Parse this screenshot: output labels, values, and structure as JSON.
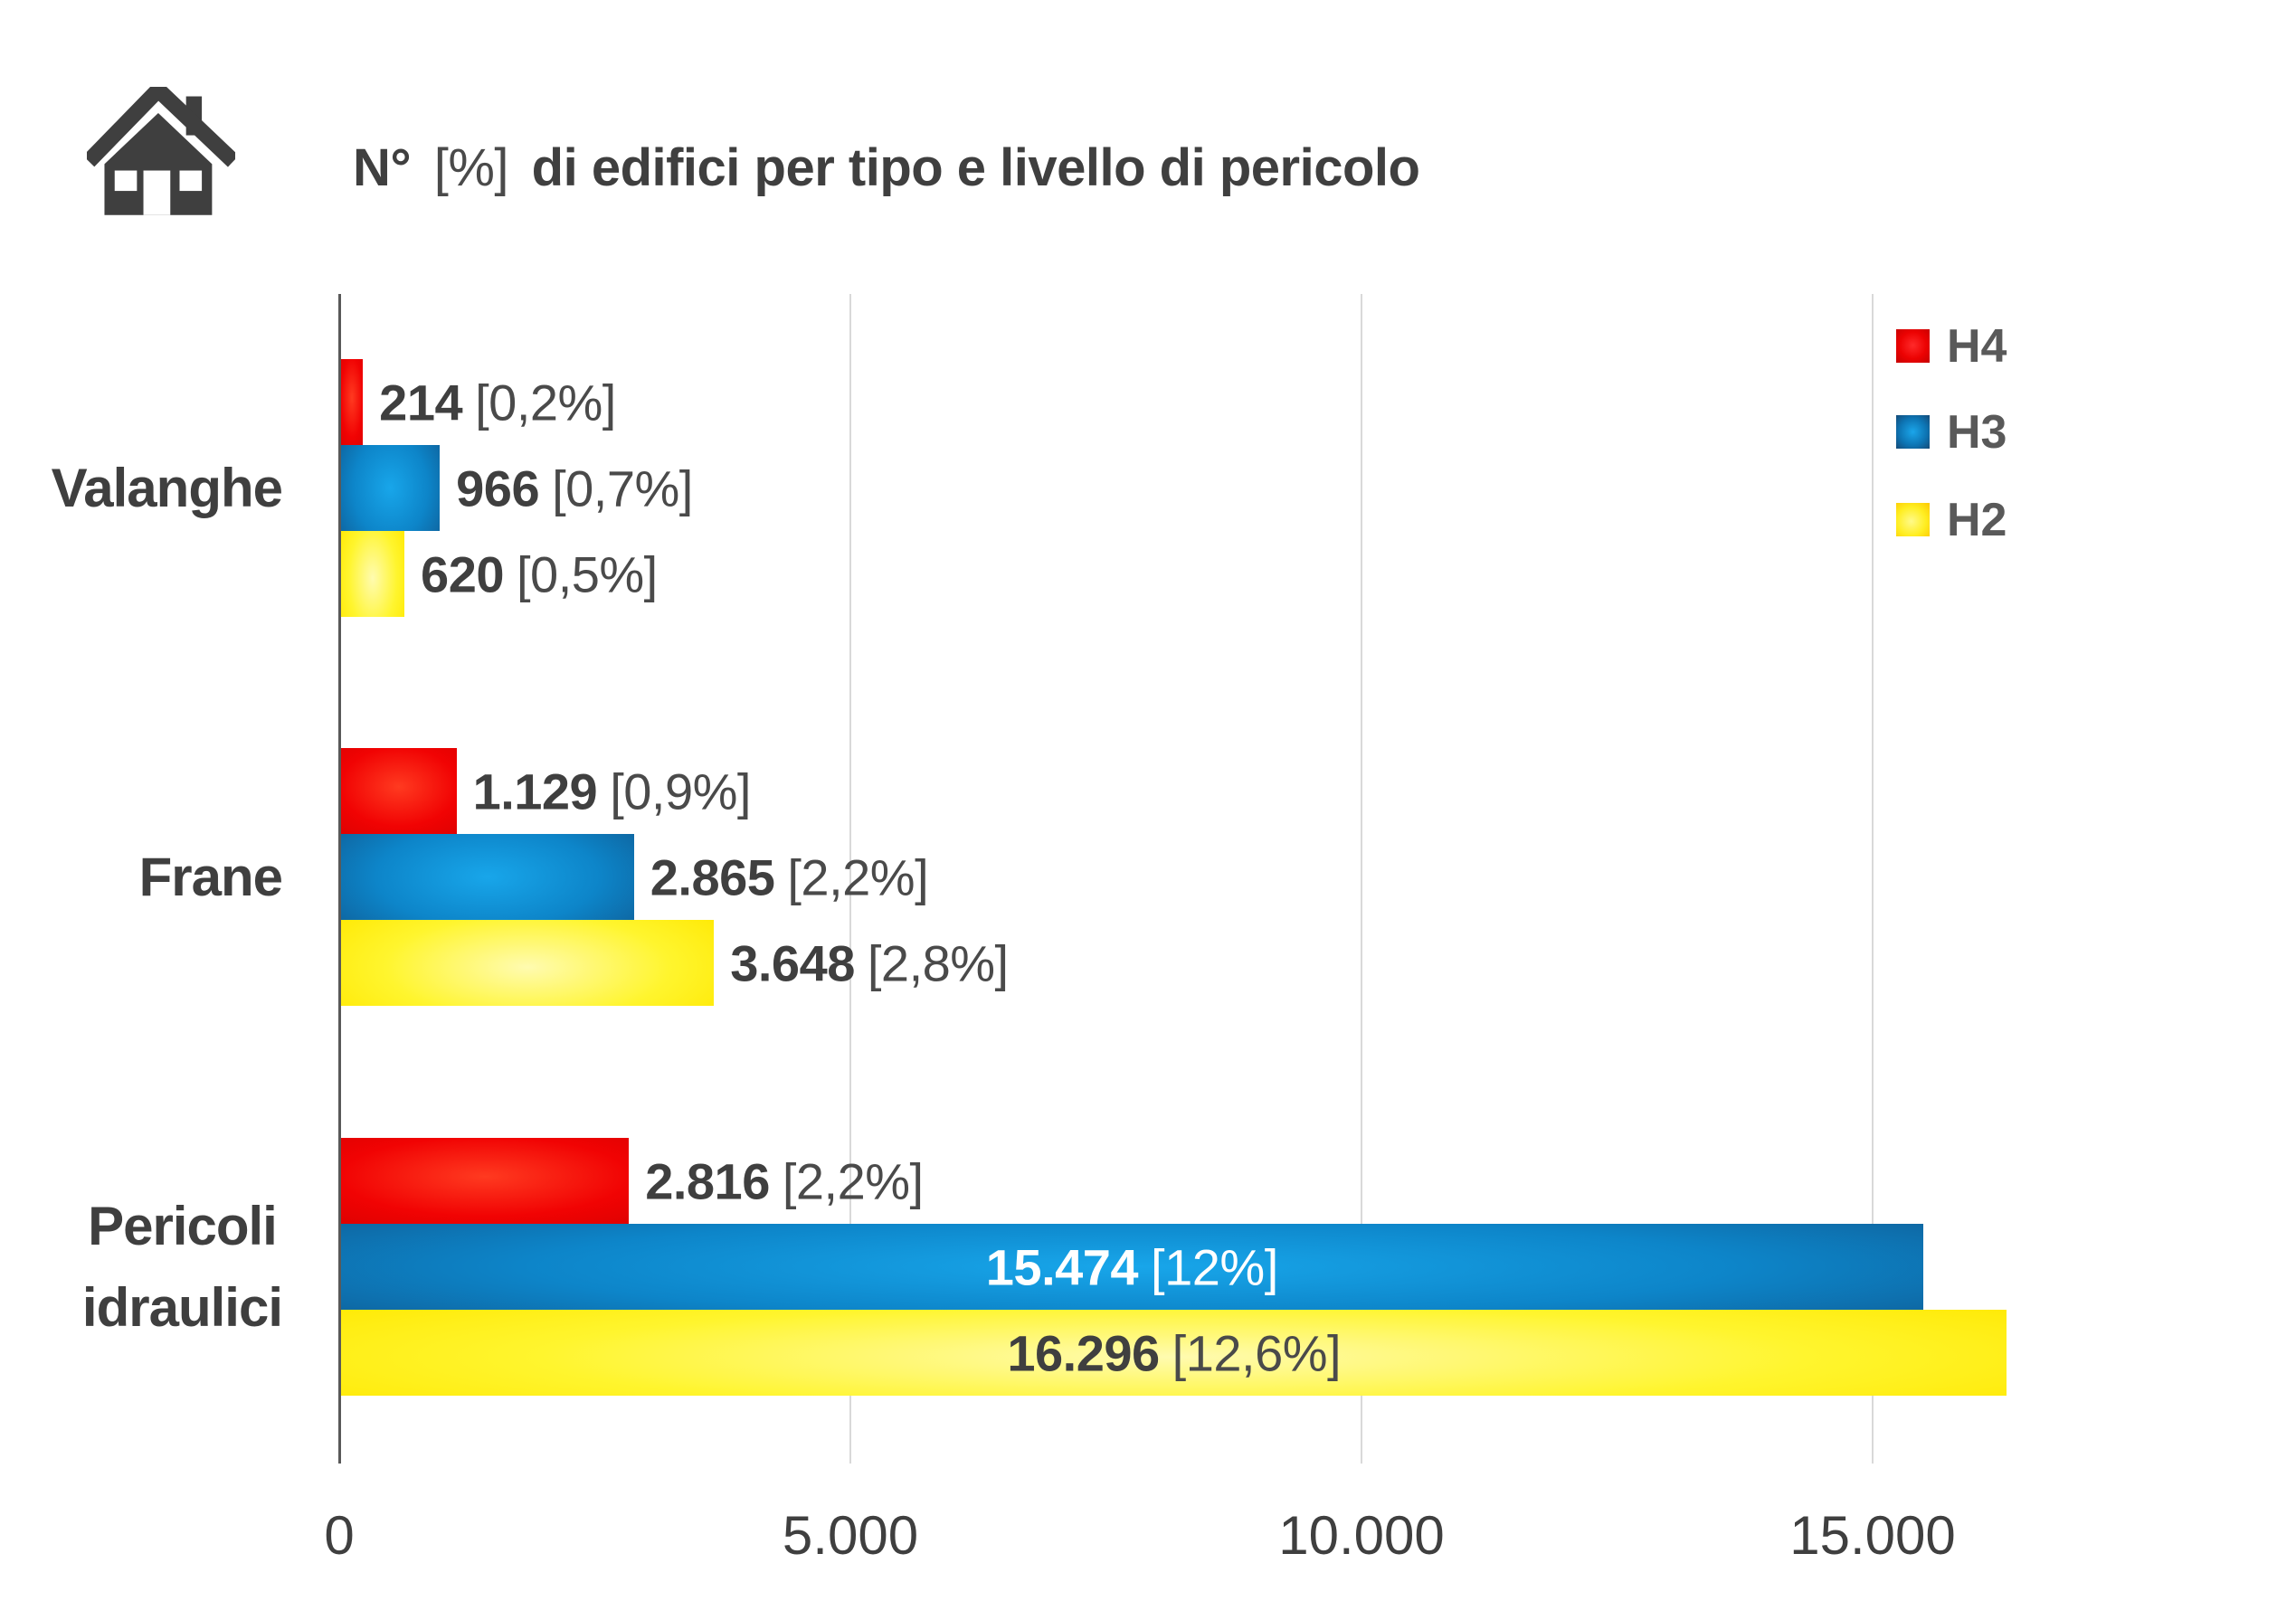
{
  "title": {
    "bold_prefix": "N°",
    "light_mid": "[%]",
    "bold_rest": "di edifici per tipo e livello di pericolo"
  },
  "legend": {
    "items": [
      {
        "key": "h4",
        "label": "H4"
      },
      {
        "key": "h3",
        "label": "H3"
      },
      {
        "key": "h2",
        "label": "H2"
      }
    ]
  },
  "x_axis": {
    "tick_labels": [
      "0",
      "5.000",
      "10.000",
      "15.000"
    ],
    "tick_values": [
      0,
      5000,
      10000,
      15000
    ]
  },
  "chart_data": {
    "type": "bar",
    "orientation": "horizontal",
    "title": "N° [%] di edifici per tipo e livello di pericolo",
    "categories": [
      "Valanghe",
      "Frane",
      "Pericoli idraulici"
    ],
    "category_lines": [
      [
        "Valanghe"
      ],
      [
        "Frane"
      ],
      [
        "Pericoli",
        "idraulici"
      ]
    ],
    "series": [
      {
        "name": "H4",
        "color_key": "h4",
        "values": [
          214,
          1129,
          2816
        ],
        "labels": [
          {
            "num": "214",
            "pct": "[0,2%]",
            "inside": false
          },
          {
            "num": "1.129",
            "pct": "[0,9%]",
            "inside": false
          },
          {
            "num": "2.816",
            "pct": "[2,2%]",
            "inside": false
          }
        ]
      },
      {
        "name": "H3",
        "color_key": "h3",
        "values": [
          966,
          2865,
          15474
        ],
        "labels": [
          {
            "num": "966",
            "pct": "[0,7%]",
            "inside": false
          },
          {
            "num": "2.865",
            "pct": "[2,2%]",
            "inside": false
          },
          {
            "num": "15.474",
            "pct": "[12%]",
            "inside": true,
            "white": true
          }
        ]
      },
      {
        "name": "H2",
        "color_key": "h2",
        "values": [
          620,
          3648,
          16296
        ],
        "labels": [
          {
            "num": "620",
            "pct": "[0,5%]",
            "inside": false
          },
          {
            "num": "3.648",
            "pct": "[2,8%]",
            "inside": false
          },
          {
            "num": "16.296",
            "pct": "[12,6%]",
            "inside": true,
            "white": false
          }
        ]
      }
    ],
    "xlim": [
      0,
      17500
    ],
    "grid": true,
    "legend_position": "top-right"
  },
  "colors": {
    "h4": "#E80000",
    "h3": "#1272B4",
    "h2": "#FFD800",
    "text_dark": "#3F3F3F",
    "text_light": "#4A4A4A",
    "axis": "#595959",
    "gridline": "#D9D9D9",
    "legend_text": "#595959",
    "white_label": "#FFFFFF"
  }
}
